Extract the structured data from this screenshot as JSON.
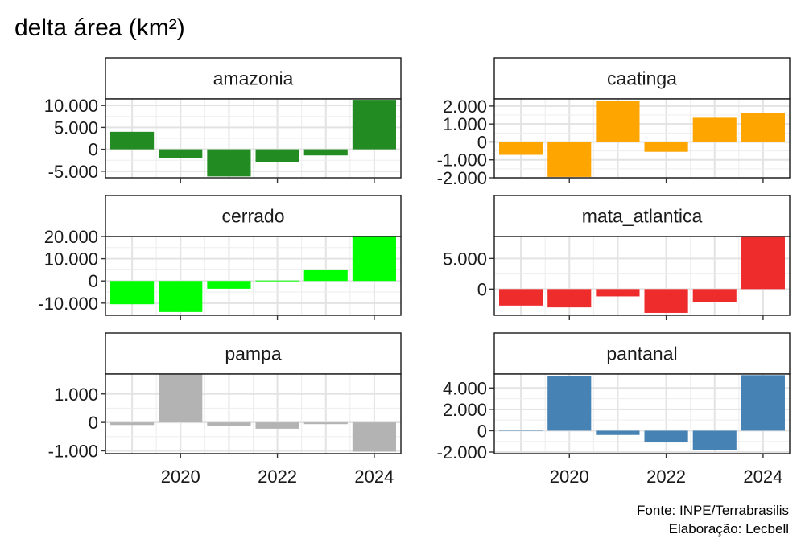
{
  "title": "delta área (km²)",
  "caption": [
    "Fonte: INPE/Terrabrasilis",
    "Elaboração: Lecbell"
  ],
  "chart_data": {
    "type": "bar",
    "layout": "facet-grid 3x2",
    "x": [
      2019,
      2020,
      2021,
      2022,
      2023,
      2024
    ],
    "x_ticks": [
      "2020",
      "2022",
      "2024"
    ],
    "grid": true,
    "panels": [
      {
        "name": "amazonia",
        "color": "#228B22",
        "ylim": [
          -6500,
          11500
        ],
        "ticks": [
          -5000,
          0,
          5000,
          10000
        ],
        "tick_labels": [
          "-5.000",
          "0",
          "5.000",
          "10.000"
        ],
        "values": [
          4000,
          -2000,
          -6200,
          -2900,
          -1400,
          11300
        ]
      },
      {
        "name": "caatinga",
        "color": "#FFA500",
        "ylim": [
          -2000,
          2400
        ],
        "ticks": [
          -2000,
          -1000,
          0,
          1000,
          2000
        ],
        "tick_labels": [
          "-2.000",
          "-1.000",
          "0",
          "1.000",
          "2.000"
        ],
        "values": [
          -720,
          -1950,
          2300,
          -550,
          1350,
          1600
        ]
      },
      {
        "name": "cerrado",
        "color": "#00FF00",
        "ylim": [
          -15500,
          20000
        ],
        "ticks": [
          -10000,
          0,
          10000,
          20000
        ],
        "tick_labels": [
          "-10.000",
          "0",
          "10.000",
          "20.000"
        ],
        "values": [
          -10500,
          -14000,
          -3500,
          200,
          4800,
          19800
        ]
      },
      {
        "name": "mata_atlantica",
        "color": "#EE2C2C",
        "ylim": [
          -4300,
          8600
        ],
        "ticks": [
          0,
          5000
        ],
        "tick_labels": [
          "0",
          "5.000"
        ],
        "values": [
          -2700,
          -3000,
          -1200,
          -3900,
          -2100,
          8500
        ]
      },
      {
        "name": "pampa",
        "color": "#B3B3B3",
        "ylim": [
          -1100,
          1700
        ],
        "ticks": [
          -1000,
          0,
          1000
        ],
        "tick_labels": [
          "-1.000",
          "0",
          "1.000"
        ],
        "values": [
          -90,
          1700,
          -120,
          -220,
          -60,
          -1030
        ]
      },
      {
        "name": "pantanal",
        "color": "#4682B4",
        "ylim": [
          -2150,
          5300
        ],
        "ticks": [
          -2000,
          0,
          2000,
          4000
        ],
        "tick_labels": [
          "-2.000",
          "0",
          "2.000",
          "4.000"
        ],
        "values": [
          100,
          5100,
          -400,
          -1100,
          -1800,
          5200
        ]
      }
    ]
  }
}
